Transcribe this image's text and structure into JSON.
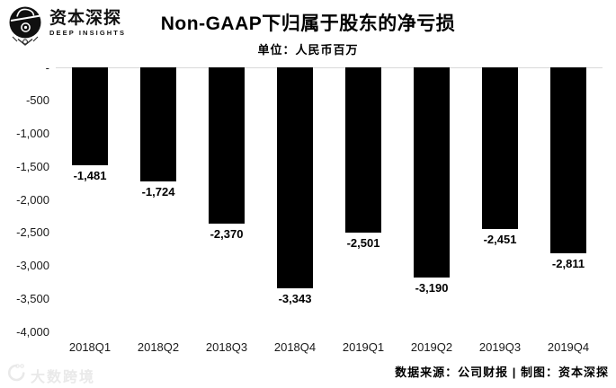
{
  "header": {
    "logo": {
      "brand_cn": "资本深探",
      "brand_en": "DEEP INSIGHTS"
    },
    "title": "Non-GAAP下归属于股东的净亏损",
    "subtitle": "单位：人民币百万"
  },
  "chart_data": {
    "type": "bar",
    "title": "Non-GAAP下归属于股东的净亏损",
    "unit_label": "单位：人民币百万",
    "categories": [
      "2018Q1",
      "2018Q2",
      "2018Q3",
      "2018Q4",
      "2019Q1",
      "2019Q2",
      "2019Q3",
      "2019Q4"
    ],
    "values": [
      -1481,
      -1724,
      -2370,
      -3343,
      -2501,
      -3190,
      -2451,
      -2811
    ],
    "value_labels": [
      "-1,481",
      "-1,724",
      "-2,370",
      "-3,343",
      "-2,501",
      "-3,190",
      "-2,451",
      "-2,811"
    ],
    "ylim": [
      -4000,
      0
    ],
    "yticks": [
      {
        "label": "-",
        "value": 0
      },
      {
        "label": "-500",
        "value": -500
      },
      {
        "label": "-1,000",
        "value": -1000
      },
      {
        "label": "-1,500",
        "value": -1500
      },
      {
        "label": "-2,000",
        "value": -2000
      },
      {
        "label": "-2,500",
        "value": -2500
      },
      {
        "label": "-3,000",
        "value": -3000
      },
      {
        "label": "-3,500",
        "value": -3500
      },
      {
        "label": "-4,000",
        "value": -4000
      }
    ],
    "bar_color": "#000000",
    "gridline_color": "#d9d9d9",
    "grid": "zero-line-only",
    "legend": null
  },
  "footer": {
    "watermark_text": "大数跨境",
    "source": "数据来源：公司财报 | 制图：资本深探"
  }
}
